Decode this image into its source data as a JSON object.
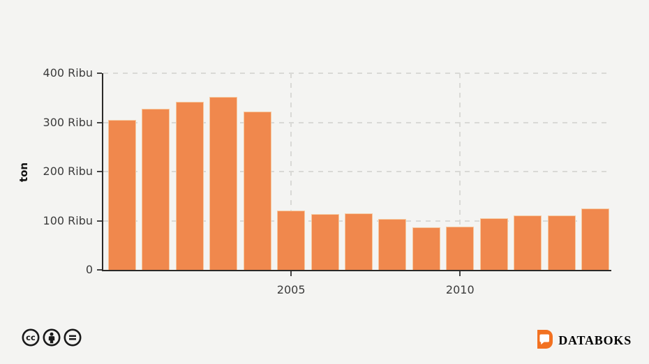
{
  "background": "#f4f4f2",
  "axis": {
    "line_color": "#2b2a29",
    "grid_color": "#d9d9d6",
    "tick_color": "#444444",
    "label_color": "#3b3b3b"
  },
  "chart_data": {
    "type": "bar",
    "title": "",
    "ylabel": "ton",
    "xlabel": "",
    "unit": "Ribu ton",
    "categories": [
      "2000",
      "2001",
      "2002",
      "2003",
      "2004",
      "2005",
      "2006",
      "2007",
      "2008",
      "2009",
      "2010",
      "2011",
      "2012",
      "2013",
      "2014"
    ],
    "values": [
      305,
      328,
      342,
      352,
      322,
      121,
      113,
      115,
      103,
      86,
      88,
      105,
      111,
      110,
      125
    ],
    "ylim": [
      0,
      400
    ],
    "y_ticks": [
      {
        "value": 0,
        "label": "0"
      },
      {
        "value": 100,
        "label": "100 Ribu"
      },
      {
        "value": 200,
        "label": "200 Ribu"
      },
      {
        "value": 300,
        "label": "300 Ribu"
      },
      {
        "value": 400,
        "label": "400 Ribu"
      }
    ],
    "x_ticks": [
      {
        "index": 5,
        "label": "2005"
      },
      {
        "index": 10,
        "label": "2010"
      }
    ],
    "grid": "dashed",
    "legend": "none",
    "bar_color": "#f0884d",
    "bar_border_color": "#f6c9a0"
  },
  "footer": {
    "license": {
      "icons": [
        {
          "name": "cc-icon"
        },
        {
          "name": "cc-by-icon"
        },
        {
          "name": "cc-nd-icon"
        }
      ],
      "icon_color": "#1a1a1a"
    },
    "brand": {
      "name": "DATABOKS",
      "logo_color": "#f27121",
      "text_color": "#231f20"
    }
  }
}
